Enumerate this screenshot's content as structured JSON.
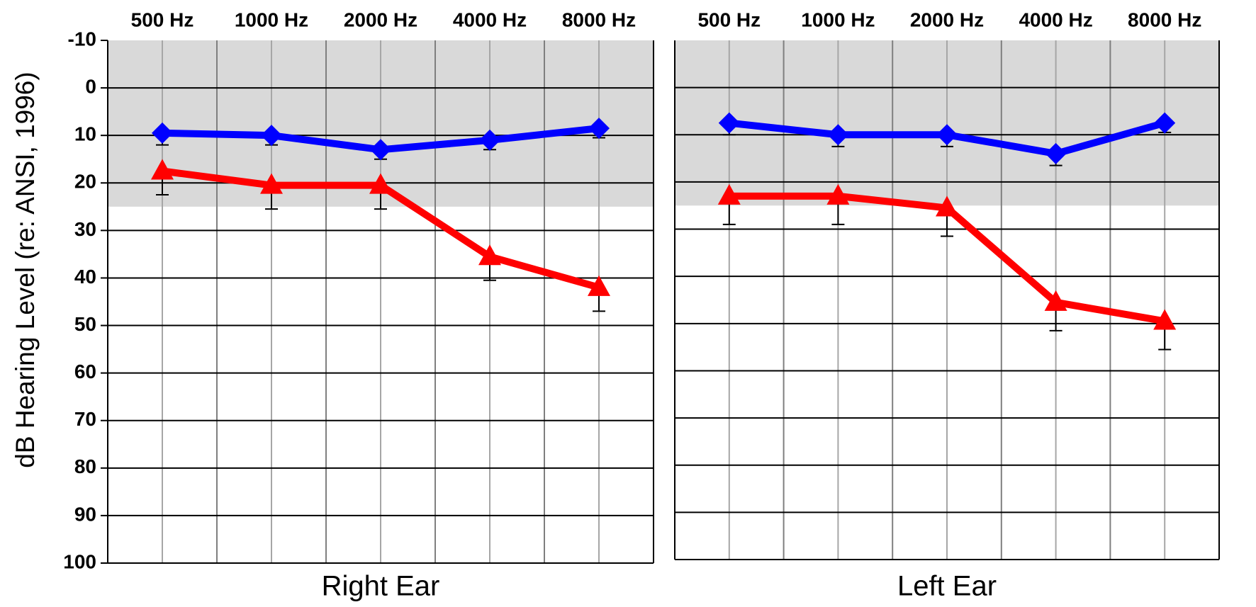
{
  "chart_data": [
    {
      "type": "line",
      "panel_label": "Right Ear",
      "ylabel": "dB Hearing Level (re: ANSI, 1996)",
      "x": [
        "500 Hz",
        "1000 Hz",
        "2000 Hz",
        "4000 Hz",
        "8000 Hz"
      ],
      "y_ticks": [
        "-10",
        "0",
        "10",
        "20",
        "30",
        "40",
        "50",
        "60",
        "70",
        "80",
        "90",
        "100"
      ],
      "ylim": [
        -10,
        100
      ],
      "y_inverted": true,
      "normal_range_shading": [
        -10,
        25
      ],
      "grid": true,
      "series": [
        {
          "values": [
            9.5,
            10,
            13,
            11,
            8.5
          ],
          "error": [
            2.5,
            2,
            2,
            2,
            2
          ],
          "marker": "diamond",
          "color": "#0000ff"
        },
        {
          "values": [
            17.5,
            20.5,
            20.5,
            35.5,
            42
          ],
          "error": [
            5,
            5,
            5,
            5,
            5
          ],
          "marker": "triangle",
          "color": "#ff0000"
        }
      ]
    },
    {
      "type": "line",
      "panel_label": "Left Ear",
      "x": [
        "500 Hz",
        "1000 Hz",
        "2000 Hz",
        "4000 Hz",
        "8000 Hz"
      ],
      "ylim": [
        -10,
        100
      ],
      "y_inverted": true,
      "normal_range_shading": [
        -10,
        25
      ],
      "grid": true,
      "series": [
        {
          "values": [
            7.5,
            10,
            10,
            14,
            7.5
          ],
          "error": [
            2.5,
            2.5,
            2.5,
            2.5,
            2
          ],
          "marker": "diamond",
          "color": "#0000ff"
        },
        {
          "values": [
            23,
            23,
            25.5,
            45.5,
            49.5
          ],
          "error": [
            6,
            6,
            6,
            6,
            6
          ],
          "marker": "triangle",
          "color": "#ff0000"
        }
      ]
    }
  ]
}
